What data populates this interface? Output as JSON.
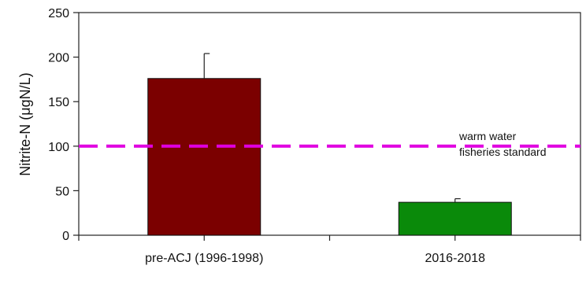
{
  "chart_data": {
    "type": "bar",
    "title": "",
    "xlabel": "",
    "ylabel": "Nitrite-N (μgN/L)",
    "ylim": [
      0,
      250
    ],
    "yticks": [
      0,
      50,
      100,
      150,
      200,
      250
    ],
    "categories": [
      "pre-ACJ (1996-1998)",
      "2016-2018"
    ],
    "values": [
      176,
      37
    ],
    "error_upper": [
      204,
      41
    ],
    "bar_colors": [
      "#7b0000",
      "#0a8a0a"
    ],
    "grid": false,
    "reference_line": {
      "value": 100,
      "style": "dashed",
      "color": "#e000e0",
      "label_lines": [
        "warm water",
        "fisheries standard"
      ]
    }
  }
}
